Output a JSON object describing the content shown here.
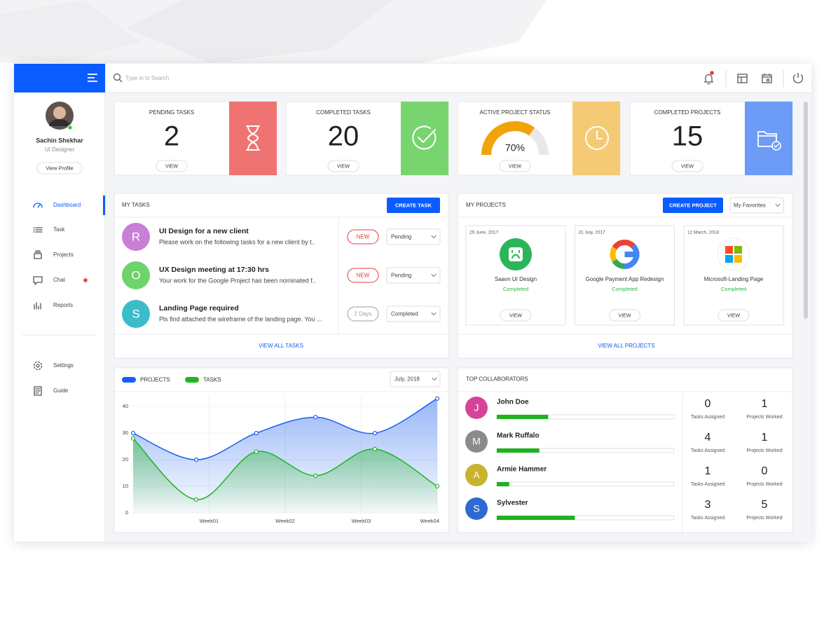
{
  "topbar": {
    "search_placeholder": "Type in to Search"
  },
  "profile": {
    "name": "Sachin Shekhar",
    "role": "UI Designer",
    "button": "View Profile"
  },
  "menu": [
    {
      "label": "Dashboard",
      "active": true
    },
    {
      "label": "Task"
    },
    {
      "label": "Projects"
    },
    {
      "label": "Chat",
      "badge": true
    },
    {
      "label": "Reports"
    }
  ],
  "menu_bottom": [
    {
      "label": "Settings"
    },
    {
      "label": "Guide"
    }
  ],
  "stats": [
    {
      "label": "PENDING TASKS",
      "value": 2,
      "color": "#f07373",
      "button": "VIEW"
    },
    {
      "label": "COMPLETED TASKS",
      "value": 20,
      "color": "#78d46f",
      "button": "VIEW"
    },
    {
      "label": "ACTIVE PROJECT STATUS",
      "value": 70,
      "value_label": "70%",
      "display": "gauge",
      "color": "#f5ca74",
      "gauge_color": "#f0a30a",
      "button": "VIEW"
    },
    {
      "label": "COMPLETED PROJECTS",
      "value": 15,
      "color": "#6c9cf5",
      "button": "VIEW"
    }
  ],
  "tasks": {
    "title": "MY TASKS",
    "button": "CREATE TASK",
    "footer": "VIEW ALL TASKS",
    "items": [
      {
        "initial": "R",
        "color": "#c97fd6",
        "title": "UI Design for a new client",
        "description": "Please work on the following tasks for a new client by t..",
        "badge": "NEW",
        "badge_color": "#e53935",
        "status": "Pending"
      },
      {
        "initial": "O",
        "color": "#6ed36a",
        "title": "UX Design meeting at 17:30 hrs",
        "description": "Your work for the Google Project has been nominated f..",
        "badge": "NEW",
        "badge_color": "#e53935",
        "status": "Pending"
      },
      {
        "initial": "S",
        "color": "#3bbcc9",
        "title": "Landing Page required",
        "description": "Pls find attached the wireframe of the landing page. You ...",
        "badge": "2 Days",
        "badge_color": "#9e9e9e",
        "status": "Completed"
      }
    ]
  },
  "projects": {
    "title": "MY PROJECTS",
    "button": "CREATE PROJECT",
    "filter": "My Favorites",
    "footer": "VIEW ALL PROJECTS",
    "items": [
      {
        "date": "29 June, 2017",
        "name": "Saavn UI Design",
        "status": "Completed",
        "button": "VIEW"
      },
      {
        "date": "31 July, 2017",
        "name": "Google Payment App Redesign",
        "status": "Completed",
        "button": "VIEW"
      },
      {
        "date": "12 March, 2018",
        "name": "Microsoft-Landing Page",
        "status": "Completed",
        "button": "VIEW"
      }
    ]
  },
  "chart_panel": {
    "filter": "July, 2018"
  },
  "chart_data": {
    "type": "line",
    "x": [
      0,
      0.83,
      1.62,
      2.4,
      3.18,
      4
    ],
    "series": [
      {
        "name": "PROJECTS",
        "color": "#1a5ff0",
        "values": [
          30,
          20,
          30,
          36,
          30,
          43
        ]
      },
      {
        "name": "TASKS",
        "color": "#1fb51f",
        "values": [
          28,
          5,
          23,
          14,
          24,
          10
        ]
      }
    ],
    "xlim": [
      0,
      4
    ],
    "xticks": [
      {
        "value": 1,
        "label": "Week01"
      },
      {
        "value": 2,
        "label": "Week02"
      },
      {
        "value": 3,
        "label": "Week03"
      },
      {
        "value": 4,
        "label": "Week04"
      }
    ],
    "ylim": [
      0,
      44
    ],
    "yticks": [
      0,
      10,
      20,
      30,
      40
    ],
    "grid": true,
    "smooth": true
  },
  "collaborators": {
    "title": "TOP COLLABORATORS",
    "labels": [
      "Tasks Assigned",
      "Projects Worked"
    ],
    "bar_color": "#1db31d",
    "items": [
      {
        "initial": "J",
        "color": "#d6449a",
        "name": "John Doe",
        "progress": 29,
        "tasks_assigned": 0,
        "projects_worked": 1
      },
      {
        "initial": "M",
        "color": "#8b8b8b",
        "name": "Mark Ruffalo",
        "progress": 24,
        "tasks_assigned": 4,
        "projects_worked": 1
      },
      {
        "initial": "A",
        "color": "#c9b22e",
        "name": "Armie Hammer",
        "progress": 7,
        "tasks_assigned": 1,
        "projects_worked": 0
      },
      {
        "initial": "S",
        "color": "#2d6bd1",
        "name": "Sylvester",
        "progress": 44,
        "tasks_assigned": 3,
        "projects_worked": 5
      }
    ]
  }
}
